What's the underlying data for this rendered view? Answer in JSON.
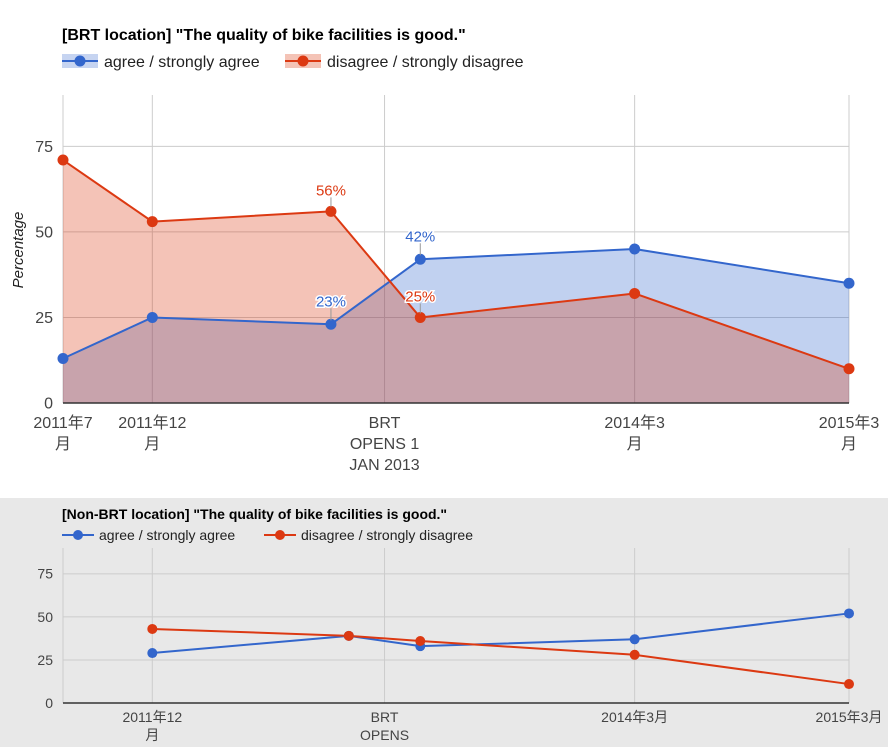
{
  "colors": {
    "agree": "#3366cc",
    "disagree": "#dc3912",
    "grid": "#cccccc",
    "axis": "#333333",
    "tick_text": "#444444"
  },
  "chart_data": [
    {
      "type": "area",
      "title": "[BRT location] \"The quality of bike facilities is good.\"",
      "ylabel": "Percentage",
      "xlabel": "",
      "ylim": [
        0,
        90
      ],
      "yticks": [
        0,
        25,
        50,
        75
      ],
      "grid": true,
      "legend": "top-left",
      "x_ticks": [
        {
          "pos": 0,
          "lines": [
            "2011年7",
            "月"
          ]
        },
        {
          "pos": 5,
          "lines": [
            "2011年12",
            "月"
          ]
        },
        {
          "pos": 18,
          "lines": [
            "BRT",
            "OPENS 1",
            "JAN 2013"
          ]
        },
        {
          "pos": 32,
          "lines": [
            "2014年3",
            "月"
          ]
        },
        {
          "pos": 44,
          "lines": [
            "2015年3",
            "月"
          ]
        }
      ],
      "series": [
        {
          "name": "agree / strongly agree",
          "color_key": "agree",
          "x": [
            0,
            5,
            15,
            20,
            32,
            44
          ],
          "values": [
            13,
            25,
            23,
            42,
            45,
            35
          ],
          "labels": {
            "2": "23%",
            "3": "42%"
          }
        },
        {
          "name": "disagree / strongly disagree",
          "color_key": "disagree",
          "x": [
            0,
            5,
            15,
            20,
            32,
            44
          ],
          "values": [
            71,
            53,
            56,
            25,
            32,
            10
          ],
          "labels": {
            "2": "56%",
            "3": "25%"
          }
        }
      ]
    },
    {
      "type": "line",
      "title": "[Non-BRT location] \"The quality of bike facilities is good.\"",
      "ylabel": "",
      "xlabel": "",
      "ylim": [
        0,
        90
      ],
      "yticks": [
        0,
        25,
        50,
        75
      ],
      "grid": true,
      "legend": "top-left",
      "x_ticks": [
        {
          "pos": 5,
          "lines": [
            "2011年12",
            "月"
          ]
        },
        {
          "pos": 18,
          "lines": [
            "BRT",
            "OPENS"
          ]
        },
        {
          "pos": 32,
          "lines": [
            "2014年3月"
          ]
        },
        {
          "pos": 44,
          "lines": [
            "2015年3月"
          ]
        }
      ],
      "series": [
        {
          "name": "agree / strongly agree",
          "color_key": "agree",
          "x": [
            5,
            16,
            20,
            32,
            44
          ],
          "values": [
            29,
            39,
            33,
            37,
            52
          ]
        },
        {
          "name": "disagree / strongly disagree",
          "color_key": "disagree",
          "x": [
            5,
            16,
            20,
            32,
            44
          ],
          "values": [
            43,
            39,
            36,
            28,
            11
          ]
        }
      ]
    }
  ]
}
